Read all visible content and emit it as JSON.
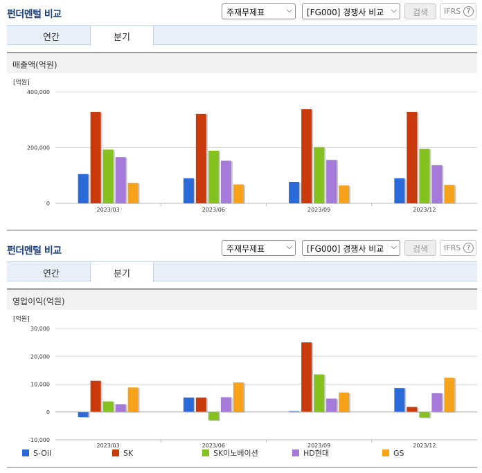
{
  "header": {
    "title": "펀더멘털 비교",
    "select_report": "주재무제표",
    "select_group": "[FG000] 경쟁사 비교",
    "search_label": "검색",
    "ifrs_label": "IFRS",
    "help_icon": "?"
  },
  "tabs": [
    {
      "label": "연간"
    },
    {
      "label": "분기"
    }
  ],
  "colors": {
    "accent": "#1d3f7a",
    "series": [
      "#2969d8",
      "#c93a0c",
      "#86c21f",
      "#a57ad8",
      "#f7a21b"
    ]
  },
  "legend": [
    "S-Oil",
    "SK",
    "SK이노베이션",
    "HD현대",
    "GS"
  ],
  "charts": [
    {
      "title": "매출액(억원)",
      "unit": "[억원]"
    },
    {
      "title": "영업이익(억원)",
      "unit": "[억원]"
    }
  ],
  "chart_data": [
    {
      "type": "bar",
      "title": "매출액(억원)",
      "ylabel": "[억원]",
      "categories": [
        "2023/03",
        "2023/06",
        "2023/09",
        "2023/12"
      ],
      "ylim": [
        0,
        400000
      ],
      "yticks": [
        0,
        200000,
        400000
      ],
      "ytick_labels": [
        "0",
        "200,000",
        "400,000"
      ],
      "series": [
        {
          "name": "S-Oil",
          "values": [
            105000,
            90000,
            77000,
            90000
          ]
        },
        {
          "name": "SK",
          "values": [
            328000,
            321000,
            338000,
            328000
          ]
        },
        {
          "name": "SK이노베이션",
          "values": [
            193000,
            189000,
            202000,
            196000
          ]
        },
        {
          "name": "HD현대",
          "values": [
            166000,
            153000,
            156000,
            137000
          ]
        },
        {
          "name": "GS",
          "values": [
            73000,
            68000,
            64000,
            66000
          ]
        }
      ]
    },
    {
      "type": "bar",
      "title": "영업이익(억원)",
      "ylabel": "[억원]",
      "categories": [
        "2023/03",
        "2023/06",
        "2023/09",
        "2023/12"
      ],
      "ylim": [
        -10000,
        30000
      ],
      "yticks": [
        -10000,
        0,
        10000,
        20000,
        30000
      ],
      "ytick_labels": [
        "-10,000",
        "0",
        "10,000",
        "20,000",
        "30,000"
      ],
      "series": [
        {
          "name": "S-Oil",
          "values": [
            -1800,
            5200,
            300,
            8600
          ]
        },
        {
          "name": "SK",
          "values": [
            11200,
            5200,
            25000,
            1800
          ]
        },
        {
          "name": "SK이노베이션",
          "values": [
            3800,
            -3000,
            13500,
            -2000
          ]
        },
        {
          "name": "HD현대",
          "values": [
            2800,
            5300,
            4800,
            6800
          ]
        },
        {
          "name": "GS",
          "values": [
            8800,
            10600,
            7000,
            12300
          ]
        }
      ]
    }
  ]
}
